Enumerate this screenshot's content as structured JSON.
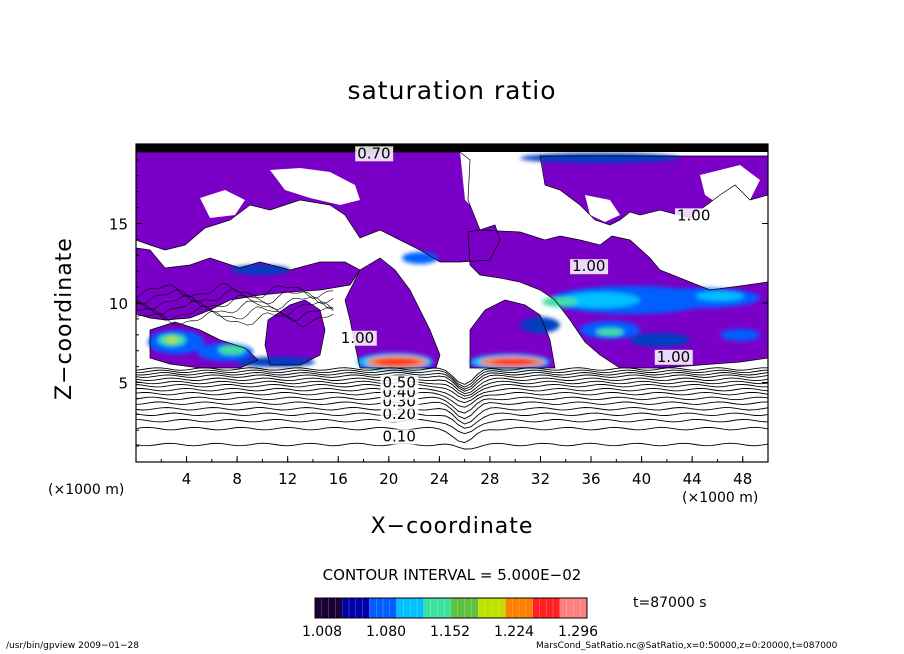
{
  "chart_data": {
    "type": "heatmap",
    "title": "saturation ratio",
    "xlabel": "X−coordinate",
    "ylabel": "Z−coordinate",
    "x_unit_label": "(×1000 m)",
    "x_unit_label_right": "(×1000 m)",
    "xlim": [
      0,
      50
    ],
    "ylim": [
      0,
      20
    ],
    "x_ticks": [
      4,
      8,
      12,
      16,
      20,
      24,
      28,
      32,
      36,
      40,
      44,
      48
    ],
    "y_ticks": [
      5,
      10,
      15
    ],
    "contour_labels": [
      {
        "x": 19.5,
        "y": 1.3,
        "text": "0.10"
      },
      {
        "x": 19.5,
        "y": 2.7,
        "text": "0.20"
      },
      {
        "x": 19.5,
        "y": 3.5,
        "text": "0.30"
      },
      {
        "x": 19.5,
        "y": 4.1,
        "text": "0.40"
      },
      {
        "x": 19.5,
        "y": 4.7,
        "text": "0.50"
      },
      {
        "x": 16.2,
        "y": 7.5,
        "text": "1.00"
      },
      {
        "x": 42.8,
        "y": 15.2,
        "text": "1.00"
      },
      {
        "x": 34.5,
        "y": 12.0,
        "text": "1.00"
      },
      {
        "x": 41.2,
        "y": 6.3,
        "text": "1.00"
      },
      {
        "x": 17.5,
        "y": 19.1,
        "text": "0.70"
      }
    ],
    "colorbar": {
      "ticks": [
        "1.008",
        "1.080",
        "1.152",
        "1.224",
        "1.296"
      ],
      "colors": [
        "#1a0033",
        "#0000aa",
        "#0060ff",
        "#00c0ff",
        "#40e0a0",
        "#60c040",
        "#c0e000",
        "#ff8000",
        "#ff2020",
        "#ff8080"
      ]
    },
    "supersaturated_fill": "#7a00c8",
    "grid": false
  },
  "annotations": {
    "contour_interval": "CONTOUR INTERVAL = 5.000E−02",
    "time": "t=87000 s",
    "footer_left": "/usr/bin/gpview   2009−01−28",
    "footer_right": "MarsCond_SatRatio.nc@SatRatio,x=0:50000,z=0:20000,t=087000"
  }
}
